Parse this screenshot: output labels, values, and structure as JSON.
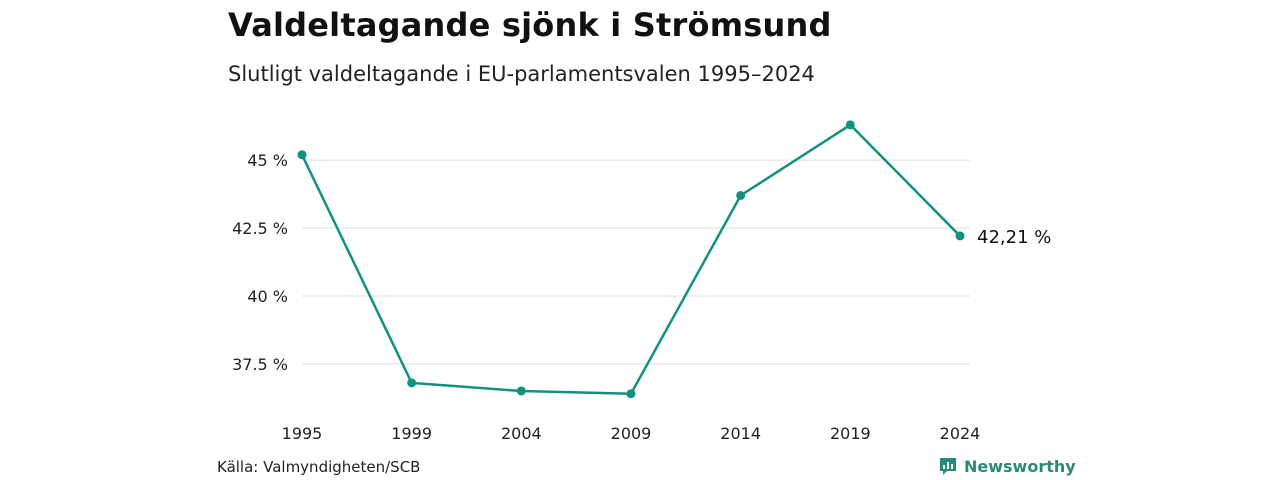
{
  "header": {
    "title": "Valdeltagande sjönk i Strömsund",
    "subtitle": "Slutligt valdeltagande i EU-parlamentsvalen 1995–2024"
  },
  "footer": {
    "source": "Källa: Valmyndigheten/SCB",
    "brand": "Newsworthy"
  },
  "colors": {
    "line": "#12917f",
    "grid": "#dddddd",
    "brand": "#2a8a78"
  },
  "chart_data": {
    "type": "line",
    "title": "Valdeltagande sjönk i Strömsund",
    "subtitle": "Slutligt valdeltagande i EU-parlamentsvalen 1995–2024",
    "xlabel": "",
    "ylabel": "",
    "categories": [
      "1995",
      "1999",
      "2004",
      "2009",
      "2014",
      "2019",
      "2024"
    ],
    "values": [
      45.2,
      36.8,
      36.5,
      36.4,
      43.7,
      46.3,
      42.21
    ],
    "yticks": [
      37.5,
      40,
      42.5,
      45
    ],
    "ytick_labels": [
      "37.5 %",
      "40 %",
      "42.5 %",
      "45 %"
    ],
    "ylim": [
      35.8,
      47.4
    ],
    "grid": true,
    "end_label": "42,21 %"
  }
}
